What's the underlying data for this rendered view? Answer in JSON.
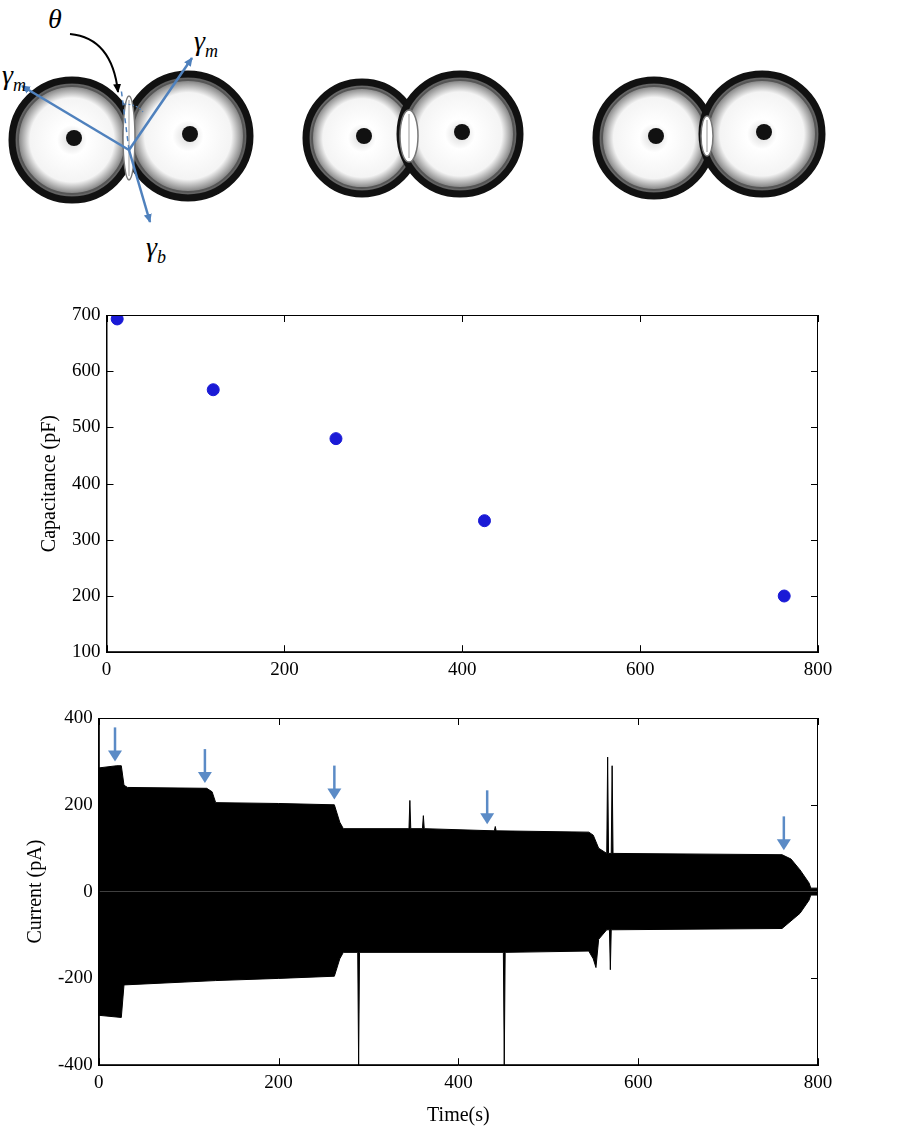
{
  "diagram": {
    "labels": [
      {
        "text": "θ"
      },
      {
        "text": "γ",
        "sub": "m"
      },
      {
        "text": "γ",
        "sub": "m"
      },
      {
        "text": "γ",
        "sub": "b"
      }
    ]
  },
  "chart_data": [
    {
      "type": "scatter",
      "y_label": "Capacitance (pF)",
      "xlim": [
        0,
        800
      ],
      "xticks": [
        0,
        200,
        400,
        600,
        800
      ],
      "ylim": [
        100,
        700
      ],
      "yticks": [
        100,
        200,
        300,
        400,
        500,
        600,
        700
      ],
      "grid": false,
      "color": "#1a1ad6",
      "marker": "circle",
      "x": [
        12,
        120,
        258,
        425,
        762
      ],
      "values": [
        693,
        567,
        480,
        334,
        200
      ]
    },
    {
      "type": "line",
      "x_label": "Time(s)",
      "y_label": "Current (pA)",
      "xlim": [
        0,
        800
      ],
      "xticks": [
        0,
        200,
        400,
        600,
        800
      ],
      "ylim": [
        -400,
        400
      ],
      "yticks": [
        -400,
        -200,
        0,
        200,
        400
      ],
      "grid": false,
      "series": [
        {
          "type": "line",
          "color": "#000000",
          "x": [
            0,
            20,
            25,
            28,
            32,
            120,
            126,
            130,
            200,
            262,
            268,
            272,
            345,
            346,
            347,
            360,
            361,
            362,
            440,
            441,
            442,
            545,
            550,
            556,
            565,
            566,
            567,
            570,
            571,
            572,
            760,
            770,
            780,
            790,
            792,
            800
          ],
          "values": [
            285,
            290,
            290,
            245,
            240,
            238,
            230,
            205,
            203,
            200,
            160,
            145,
            145,
            210,
            145,
            145,
            175,
            145,
            140,
            150,
            140,
            137,
            130,
            100,
            88,
            310,
            88,
            88,
            290,
            88,
            85,
            75,
            50,
            20,
            8,
            8
          ]
        },
        {
          "type": "line",
          "color": "#000000",
          "x": [
            0,
            25,
            28,
            130,
            200,
            262,
            268,
            272,
            288,
            289,
            290,
            450,
            451,
            452,
            545,
            550,
            553,
            556,
            565,
            568,
            569,
            570,
            760,
            780,
            790,
            792,
            800
          ],
          "values": [
            -285,
            -290,
            -215,
            -205,
            -200,
            -195,
            -155,
            -140,
            -140,
            -400,
            -140,
            -140,
            -400,
            -140,
            -137,
            -155,
            -175,
            -110,
            -88,
            -88,
            -180,
            -88,
            -85,
            -50,
            -20,
            -8,
            -8
          ]
        },
        {
          "type": "scatter",
          "marker": "arrow",
          "color": "#5b8bc6",
          "x": [
            18,
            118,
            262,
            432,
            762
          ],
          "values": [
            300,
            250,
            212,
            155,
            95
          ]
        }
      ]
    }
  ]
}
